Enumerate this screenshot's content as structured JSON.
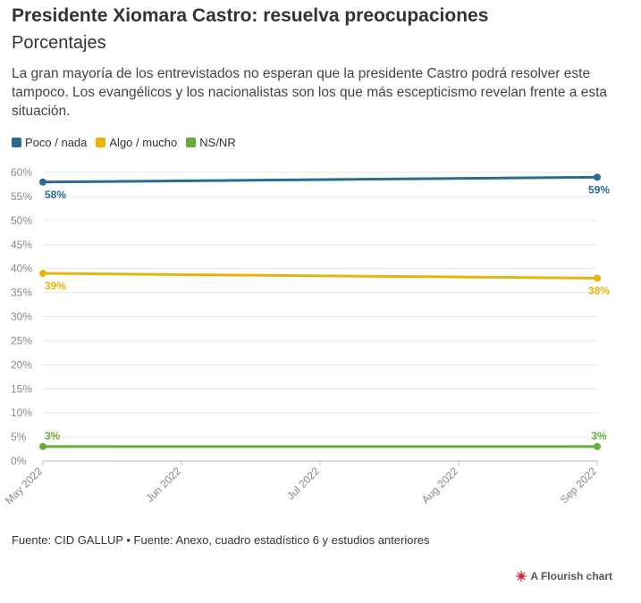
{
  "header": {
    "title": "Presidente Xiomara Castro: resuelva preocupaciones",
    "subtitle": "Porcentajes",
    "description": "La gran mayoría de los entrevistados no esperan que la presidente Castro podrá resolver este tampoco. Los evangélicos y los nacionalistas son los que más escepticismo revelan frente a esta situación."
  },
  "legend": [
    {
      "label": "Poco / nada",
      "color": "#2a6a93"
    },
    {
      "label": "Algo / mucho",
      "color": "#e8b40a"
    },
    {
      "label": "NS/NR",
      "color": "#6aab3f"
    }
  ],
  "chart_data": {
    "type": "line",
    "x": [
      "2022-05-01",
      "2022-09-01"
    ],
    "x_tick_labels": [
      "May 2022",
      "Jun 2022",
      "Jul 2022",
      "Aug 2022",
      "Sep 2022"
    ],
    "y_tick_labels": [
      "0%",
      "5%",
      "10%",
      "15%",
      "20%",
      "25%",
      "30%",
      "35%",
      "40%",
      "45%",
      "50%",
      "55%",
      "60%"
    ],
    "ylim": [
      0,
      60
    ],
    "grid": true,
    "legend_position": "top-left",
    "series": [
      {
        "name": "Poco / nada",
        "values": [
          58,
          59
        ],
        "labels": [
          "58%",
          "59%"
        ],
        "color": "#2a6a93"
      },
      {
        "name": "Algo / mucho",
        "values": [
          39,
          38
        ],
        "labels": [
          "39%",
          "38%"
        ],
        "color": "#e8b40a"
      },
      {
        "name": "NS/NR",
        "values": [
          3,
          3
        ],
        "labels": [
          "3%",
          "3%"
        ],
        "color": "#6aab3f"
      }
    ]
  },
  "footer": {
    "source": "Fuente: CID GALLUP • Fuente: Anexo, cuadro estadístico 6 y estudios anteriores",
    "credit": "A Flourish chart"
  }
}
